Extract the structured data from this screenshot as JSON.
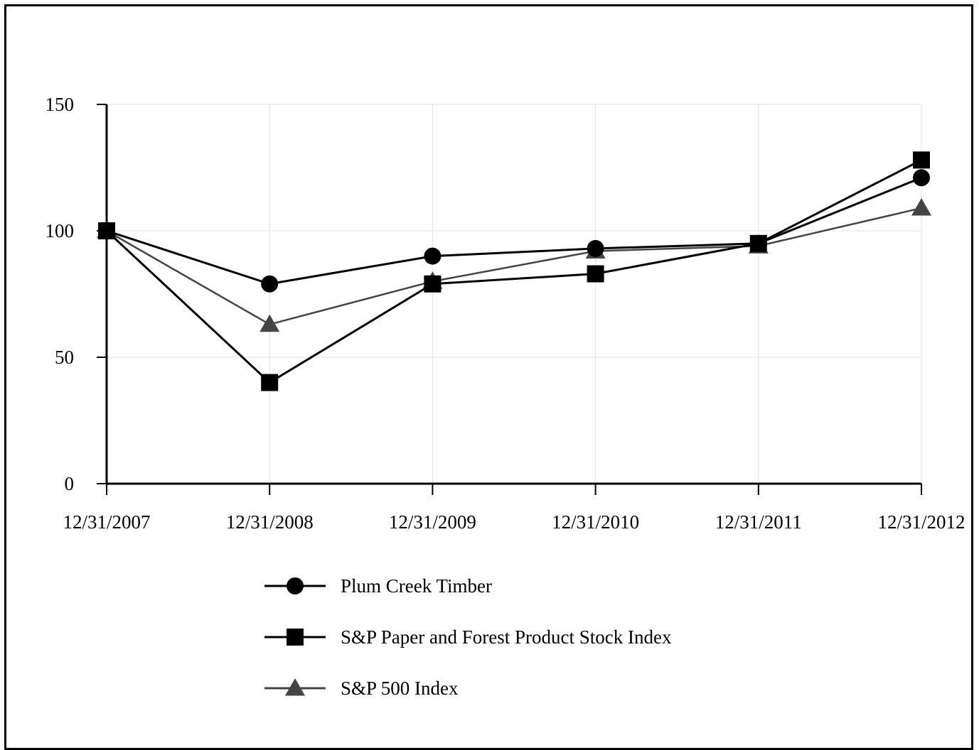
{
  "chart_data": {
    "type": "line",
    "x": [
      "12/31/2007",
      "12/31/2008",
      "12/31/2009",
      "12/31/2010",
      "12/31/2011",
      "12/31/2012"
    ],
    "series": [
      {
        "name": "Plum Creek Timber",
        "values": [
          100,
          79,
          90,
          93,
          95,
          121
        ],
        "marker": "circle",
        "color": "#000000"
      },
      {
        "name": "S&P Paper and Forest Product Stock Index",
        "values": [
          100,
          40,
          79,
          83,
          95,
          128
        ],
        "marker": "square",
        "color": "#000000"
      },
      {
        "name": "S&P 500 Index",
        "values": [
          100,
          63,
          80,
          92,
          94,
          109
        ],
        "marker": "triangle",
        "color": "#444444"
      }
    ],
    "yticks": [
      0,
      50,
      100,
      150
    ],
    "ylim": [
      0,
      150
    ],
    "grid": true,
    "legend_placement": "bottom"
  }
}
